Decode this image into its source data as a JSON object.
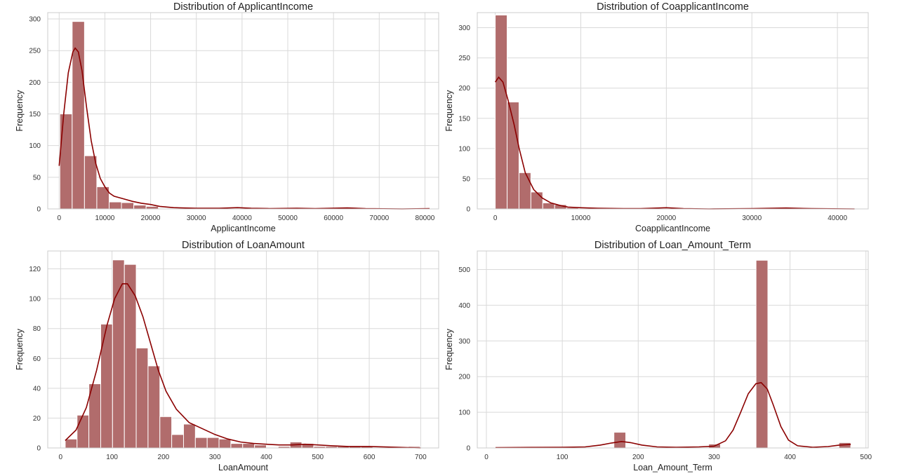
{
  "chart_data": [
    {
      "type": "histogram",
      "title": "Distribution of ApplicantIncome",
      "xlabel": "ApplicantIncome",
      "ylabel": "Frequency",
      "xlim": [
        -2500,
        83000
      ],
      "ylim": [
        0,
        310
      ],
      "xticks": [
        0,
        10000,
        20000,
        30000,
        40000,
        50000,
        60000,
        70000,
        80000
      ],
      "yticks": [
        0,
        50,
        100,
        150,
        200,
        250,
        300
      ],
      "bin_start": 150,
      "bin_width": 2695,
      "values": [
        150,
        296,
        84,
        35,
        11,
        10,
        6,
        4,
        0,
        0,
        0,
        0,
        1,
        1,
        0,
        0,
        0,
        0,
        1,
        0,
        0,
        0,
        0,
        0,
        0,
        0,
        0,
        0,
        0,
        1
      ],
      "kde": [
        [
          0,
          68
        ],
        [
          1000,
          150
        ],
        [
          2000,
          215
        ],
        [
          3000,
          248
        ],
        [
          3500,
          254
        ],
        [
          4200,
          248
        ],
        [
          5000,
          218
        ],
        [
          6000,
          160
        ],
        [
          7000,
          108
        ],
        [
          8000,
          72
        ],
        [
          9000,
          48
        ],
        [
          10000,
          35
        ],
        [
          11000,
          25
        ],
        [
          12000,
          20
        ],
        [
          14000,
          16
        ],
        [
          16000,
          12
        ],
        [
          18000,
          9
        ],
        [
          20000,
          7
        ],
        [
          22000,
          4
        ],
        [
          25000,
          2
        ],
        [
          30000,
          1
        ],
        [
          35000,
          1
        ],
        [
          39000,
          2
        ],
        [
          42000,
          1
        ],
        [
          46000,
          0.5
        ],
        [
          52000,
          1
        ],
        [
          56000,
          0.5
        ],
        [
          63000,
          1.5
        ],
        [
          67000,
          0.5
        ],
        [
          75000,
          0
        ],
        [
          81000,
          0.5
        ]
      ]
    },
    {
      "type": "histogram",
      "title": "Distribution of CoapplicantIncome",
      "xlabel": "CoapplicantIncome",
      "ylabel": "Frequency",
      "xlim": [
        -2100,
        43600
      ],
      "ylim": [
        0,
        325
      ],
      "xticks": [
        0,
        10000,
        20000,
        30000,
        40000
      ],
      "yticks": [
        0,
        50,
        100,
        150,
        200,
        250,
        300
      ],
      "bin_start": 0,
      "bin_width": 1389,
      "values": [
        321,
        177,
        60,
        28,
        10,
        7,
        2,
        0,
        0,
        0,
        0,
        0,
        0,
        0,
        1,
        0,
        0,
        0,
        0,
        0,
        0,
        0,
        0,
        0,
        0,
        0,
        0,
        0,
        0,
        1
      ],
      "kde": [
        [
          0,
          210
        ],
        [
          400,
          218
        ],
        [
          900,
          210
        ],
        [
          1500,
          180
        ],
        [
          2200,
          140
        ],
        [
          2800,
          100
        ],
        [
          3500,
          60
        ],
        [
          4500,
          32
        ],
        [
          5500,
          18
        ],
        [
          6500,
          10
        ],
        [
          7500,
          6
        ],
        [
          8500,
          3
        ],
        [
          10000,
          2
        ],
        [
          12000,
          1
        ],
        [
          15000,
          0.5
        ],
        [
          17000,
          0.5
        ],
        [
          20000,
          2
        ],
        [
          22000,
          0.5
        ],
        [
          25000,
          0
        ],
        [
          30000,
          0.5
        ],
        [
          34000,
          1.5
        ],
        [
          37000,
          0.5
        ],
        [
          42000,
          0
        ]
      ]
    },
    {
      "type": "histogram",
      "title": "Distribution of LoanAmount",
      "xlabel": "LoanAmount",
      "ylabel": "Frequency",
      "xlim": [
        -25,
        735
      ],
      "ylim": [
        0,
        132
      ],
      "xticks": [
        0,
        100,
        200,
        300,
        400,
        500,
        600,
        700
      ],
      "yticks": [
        0,
        20,
        40,
        60,
        80,
        100,
        120
      ],
      "bin_start": 9,
      "bin_width": 23,
      "values": [
        6,
        22,
        43,
        83,
        126,
        123,
        67,
        55,
        21,
        9,
        16,
        7,
        7,
        6,
        3,
        3,
        2,
        0,
        1,
        4,
        3,
        1,
        1,
        1,
        1,
        1,
        0,
        0,
        0,
        1
      ],
      "kde": [
        [
          9,
          5
        ],
        [
          30,
          12
        ],
        [
          50,
          27
        ],
        [
          70,
          52
        ],
        [
          90,
          82
        ],
        [
          105,
          100
        ],
        [
          120,
          110
        ],
        [
          130,
          110
        ],
        [
          145,
          102
        ],
        [
          160,
          88
        ],
        [
          175,
          70
        ],
        [
          190,
          52
        ],
        [
          205,
          38
        ],
        [
          225,
          26
        ],
        [
          250,
          17
        ],
        [
          275,
          13
        ],
        [
          300,
          9
        ],
        [
          325,
          6
        ],
        [
          350,
          4
        ],
        [
          375,
          3
        ],
        [
          400,
          2.5
        ],
        [
          425,
          2
        ],
        [
          450,
          2
        ],
        [
          475,
          2.5
        ],
        [
          500,
          2
        ],
        [
          525,
          1.5
        ],
        [
          560,
          1
        ],
        [
          600,
          1
        ],
        [
          650,
          0.5
        ],
        [
          700,
          0
        ]
      ]
    },
    {
      "type": "histogram",
      "title": "Distribution of Loan_Amount_Term",
      "xlabel": "Loan_Amount_Term",
      "ylabel": "Frequency",
      "xlim": [
        -12,
        503
      ],
      "ylim": [
        0,
        552
      ],
      "xticks": [
        0,
        100,
        200,
        300,
        400,
        500
      ],
      "yticks": [
        0,
        100,
        200,
        300,
        400,
        500
      ],
      "bin_start": 12,
      "bin_width": 15.6,
      "values": [
        1,
        0,
        0,
        0,
        0,
        2,
        0,
        0,
        0,
        0,
        44,
        0,
        0,
        0,
        0,
        0,
        0,
        0,
        11,
        0,
        0,
        0,
        526,
        0,
        0,
        0,
        0,
        0,
        0,
        15
      ],
      "kde": [
        [
          12,
          1
        ],
        [
          60,
          1.5
        ],
        [
          100,
          2
        ],
        [
          130,
          3
        ],
        [
          150,
          8
        ],
        [
          165,
          14
        ],
        [
          178,
          18
        ],
        [
          190,
          15
        ],
        [
          205,
          8
        ],
        [
          225,
          3
        ],
        [
          250,
          2
        ],
        [
          280,
          3
        ],
        [
          300,
          5
        ],
        [
          315,
          20
        ],
        [
          325,
          50
        ],
        [
          335,
          100
        ],
        [
          345,
          152
        ],
        [
          355,
          180
        ],
        [
          362,
          183
        ],
        [
          370,
          165
        ],
        [
          378,
          120
        ],
        [
          388,
          60
        ],
        [
          398,
          22
        ],
        [
          410,
          6
        ],
        [
          430,
          2
        ],
        [
          450,
          4
        ],
        [
          465,
          8
        ],
        [
          480,
          10
        ]
      ]
    }
  ]
}
